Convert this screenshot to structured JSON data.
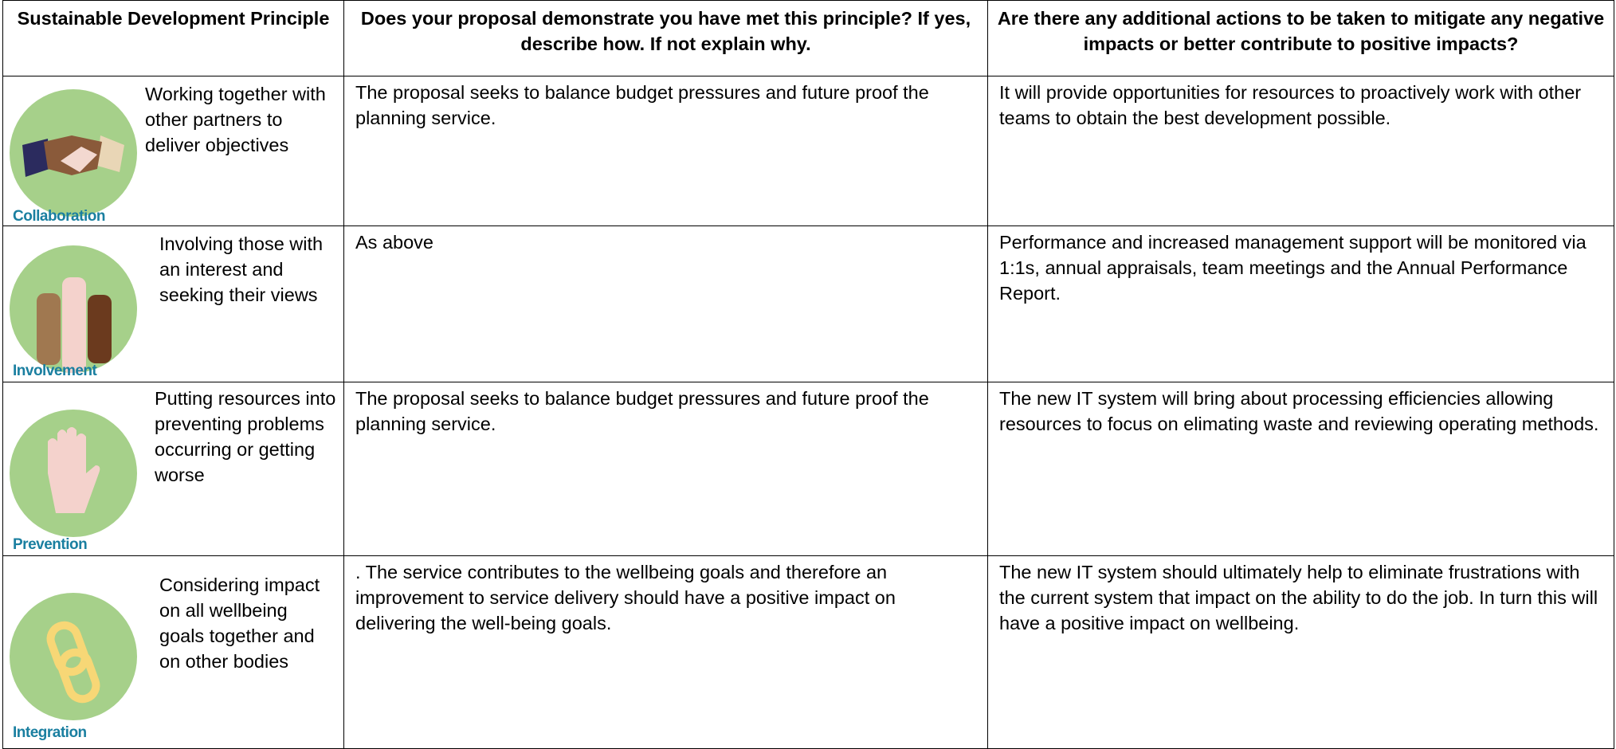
{
  "table": {
    "header": [
      "Sustainable Development Principle",
      "Does your proposal demonstrate you have met this principle?  If yes, describe how.  If not explain why.",
      "Are there any additional actions to be taken to mitigate any negative impacts or better contribute to positive impacts?"
    ],
    "rows": [
      {
        "icon_label": "Collaboration",
        "principle": "Working together with other partners to deliver objectives",
        "met": "The proposal seeks to balance budget pressures and future proof the planning service.",
        "actions": "It will provide opportunities for resources to proactively work with other teams to obtain the best development possible."
      },
      {
        "icon_label": "Involvement",
        "principle": "Involving those with an interest and seeking their views",
        "met": "As above",
        "actions": "Performance and increased management support will be monitored via 1:1s, annual appraisals, team meetings and the Annual Performance Report."
      },
      {
        "icon_label": "Prevention",
        "principle": "Putting resources into preventing problems occurring or getting worse",
        "met": "The proposal seeks to balance budget pressures and future proof the planning service.",
        "actions": "The new IT system will bring about processing efficiencies allowing resources to focus on elimating waste and reviewing operating methods."
      },
      {
        "icon_label": "Integration",
        "principle": "Considering impact on all wellbeing goals together and on other bodies",
        "met": ". The service contributes to the wellbeing goals and therefore an improvement to service delivery should have a positive impact on delivering the well-being goals.",
        "actions": "The new IT system should ultimately help to eliminate frustrations with the current system that impact on the ability to do the job. In turn this will have a positive impact on wellbeing."
      }
    ]
  }
}
